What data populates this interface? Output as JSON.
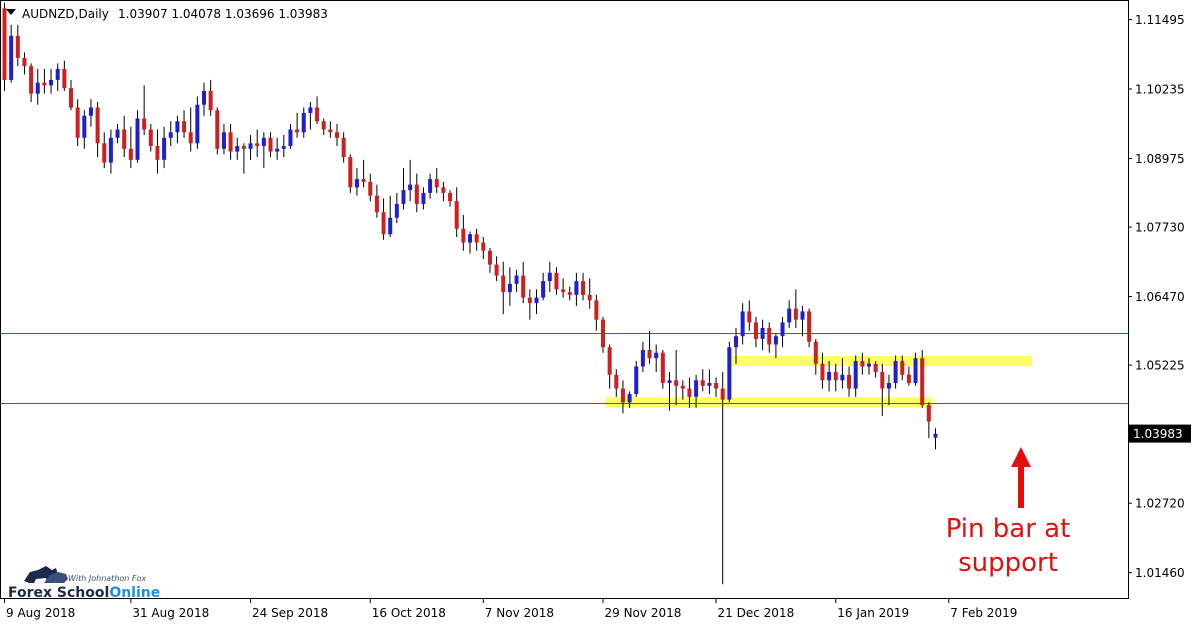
{
  "header": {
    "symbol_label": "AUDNZD,Daily",
    "ohlc_label": "1.03907 1.04078 1.03696 1.03983"
  },
  "annotation": {
    "line1": "Pin bar at",
    "line2": "support"
  },
  "logo": {
    "tagline": "With Johnathon Fox",
    "name_part1": "Forex School",
    "name_part2": "Online"
  },
  "colors": {
    "bull": "#1f1fd0",
    "bear": "#d01f1f",
    "wick": "#000000",
    "level_line": "#dd2222",
    "zone": "#ffff66",
    "annotation": "#e01010",
    "price_tag_bg": "#000000",
    "price_tag_text": "#ffffff"
  },
  "chart_data": {
    "type": "candlestick",
    "symbol": "AUDNZD",
    "timeframe": "Daily",
    "current_price": "1.03983",
    "ylim": [
      1.01,
      1.1185
    ],
    "y_ticks": [
      "1.11495",
      "1.10235",
      "1.08975",
      "1.07730",
      "1.06470",
      "1.05225",
      "1.03983",
      "1.02720",
      "1.01460"
    ],
    "x_ticks": [
      {
        "index": 0,
        "label": "9 Aug 2018"
      },
      {
        "index": 19,
        "label": "31 Aug 2018"
      },
      {
        "index": 37,
        "label": "24 Sep 2018"
      },
      {
        "index": 55,
        "label": "16 Oct 2018"
      },
      {
        "index": 72,
        "label": "7 Nov 2018"
      },
      {
        "index": 90,
        "label": "29 Nov 2018"
      },
      {
        "index": 107,
        "label": "21 Dec 2018"
      },
      {
        "index": 125,
        "label": "16 Jan 2019"
      },
      {
        "index": 142,
        "label": "7 Feb 2019"
      }
    ],
    "horizontal_levels": [
      1.058,
      1.0453
    ],
    "zones": [
      {
        "from_index": 91,
        "to_index": 139,
        "price": 1.0455
      },
      {
        "from_index": 110,
        "to_index": 154,
        "price": 1.053
      }
    ],
    "candles": [
      [
        1.117,
        1.118,
        1.102,
        1.104
      ],
      [
        1.104,
        1.114,
        1.1035,
        1.112
      ],
      [
        1.112,
        1.114,
        1.1065,
        1.108
      ],
      [
        1.108,
        1.109,
        1.105,
        1.1065
      ],
      [
        1.1065,
        1.107,
        1.1,
        1.1015
      ],
      [
        1.1015,
        1.106,
        1.0995,
        1.1035
      ],
      [
        1.1035,
        1.106,
        1.1015,
        1.103
      ],
      [
        1.103,
        1.106,
        1.1015,
        1.104
      ],
      [
        1.104,
        1.107,
        1.102,
        1.106
      ],
      [
        1.106,
        1.1075,
        1.102,
        1.1025
      ],
      [
        1.1025,
        1.104,
        1.0985,
        1.099
      ],
      [
        1.099,
        1.1005,
        1.092,
        1.0935
      ],
      [
        1.0935,
        1.0985,
        1.0915,
        1.0975
      ],
      [
        1.0975,
        1.1005,
        1.0955,
        1.099
      ],
      [
        1.099,
        1.1,
        1.09,
        1.0925
      ],
      [
        1.0925,
        1.0945,
        1.088,
        1.089
      ],
      [
        1.089,
        1.095,
        1.087,
        1.0935
      ],
      [
        1.0935,
        1.096,
        1.0925,
        1.095
      ],
      [
        1.095,
        1.0975,
        1.09,
        1.0915
      ],
      [
        1.0915,
        1.0955,
        1.088,
        1.0895
      ],
      [
        1.0895,
        1.0985,
        1.089,
        1.097
      ],
      [
        1.097,
        1.103,
        1.094,
        1.095
      ],
      [
        1.095,
        1.096,
        1.091,
        1.092
      ],
      [
        1.092,
        1.095,
        1.087,
        1.0895
      ],
      [
        1.0895,
        1.0955,
        1.088,
        1.0935
      ],
      [
        1.0935,
        1.0965,
        1.092,
        1.0945
      ],
      [
        1.0945,
        1.0975,
        1.0925,
        1.0965
      ],
      [
        1.0965,
        1.0985,
        1.0935,
        1.0945
      ],
      [
        1.0945,
        1.099,
        1.091,
        1.0925
      ],
      [
        1.0925,
        1.101,
        1.0915,
        1.0995
      ],
      [
        1.0995,
        1.1035,
        1.0975,
        1.102
      ],
      [
        1.102,
        1.104,
        1.0975,
        1.0985
      ],
      [
        1.0985,
        1.099,
        1.0905,
        1.0915
      ],
      [
        1.0915,
        1.096,
        1.0905,
        1.0945
      ],
      [
        1.0945,
        1.096,
        1.0895,
        1.091
      ],
      [
        1.091,
        1.0935,
        1.0895,
        1.092
      ],
      [
        1.092,
        1.0925,
        1.087,
        1.0915
      ],
      [
        1.0915,
        1.094,
        1.0895,
        1.0925
      ],
      [
        1.0925,
        1.095,
        1.09,
        1.092
      ],
      [
        1.092,
        1.0945,
        1.088,
        1.0935
      ],
      [
        1.0935,
        1.0945,
        1.09,
        1.091
      ],
      [
        1.091,
        1.0935,
        1.0895,
        1.0915
      ],
      [
        1.0915,
        1.094,
        1.09,
        1.092
      ],
      [
        1.092,
        1.096,
        1.0915,
        1.095
      ],
      [
        1.095,
        1.098,
        1.0935,
        1.0945
      ],
      [
        1.0945,
        1.099,
        1.0935,
        1.098
      ],
      [
        1.098,
        1.1,
        1.095,
        1.099
      ],
      [
        1.099,
        1.101,
        1.096,
        1.0965
      ],
      [
        1.0965,
        1.097,
        1.094,
        1.095
      ],
      [
        1.095,
        1.0965,
        1.0935,
        1.0945
      ],
      [
        1.0945,
        1.096,
        1.092,
        1.0935
      ],
      [
        1.0935,
        1.0945,
        1.089,
        1.09
      ],
      [
        1.09,
        1.0905,
        1.0835,
        1.0845
      ],
      [
        1.0845,
        1.088,
        1.083,
        1.086
      ],
      [
        1.086,
        1.0895,
        1.0845,
        1.0855
      ],
      [
        1.0855,
        1.087,
        1.082,
        1.083
      ],
      [
        1.083,
        1.085,
        1.079,
        1.08
      ],
      [
        1.08,
        1.0825,
        1.075,
        1.076
      ],
      [
        1.076,
        1.083,
        1.0755,
        1.079
      ],
      [
        1.079,
        1.0835,
        1.078,
        1.0815
      ],
      [
        1.0815,
        1.088,
        1.0805,
        1.084
      ],
      [
        1.084,
        1.0895,
        1.082,
        1.085
      ],
      [
        1.085,
        1.087,
        1.08,
        1.0815
      ],
      [
        1.0815,
        1.0845,
        1.0805,
        1.0835
      ],
      [
        1.0835,
        1.087,
        1.0825,
        1.086
      ],
      [
        1.086,
        1.088,
        1.0835,
        1.0845
      ],
      [
        1.0845,
        1.0855,
        1.082,
        1.0835
      ],
      [
        1.0835,
        1.084,
        1.081,
        1.082
      ],
      [
        1.082,
        1.0845,
        1.0755,
        1.077
      ],
      [
        1.077,
        1.0795,
        1.073,
        1.0745
      ],
      [
        1.0745,
        1.0765,
        1.0725,
        1.076
      ],
      [
        1.076,
        1.077,
        1.073,
        1.0745
      ],
      [
        1.0745,
        1.0755,
        1.0715,
        1.073
      ],
      [
        1.073,
        1.0735,
        1.069,
        1.0705
      ],
      [
        1.0705,
        1.072,
        1.0675,
        1.0685
      ],
      [
        1.0685,
        1.071,
        1.0615,
        1.0655
      ],
      [
        1.0655,
        1.07,
        1.063,
        1.067
      ],
      [
        1.067,
        1.0695,
        1.0655,
        1.0685
      ],
      [
        1.0685,
        1.071,
        1.0635,
        1.0645
      ],
      [
        1.0645,
        1.066,
        1.0605,
        1.0635
      ],
      [
        1.0635,
        1.066,
        1.0615,
        1.0645
      ],
      [
        1.0645,
        1.069,
        1.064,
        1.0675
      ],
      [
        1.0675,
        1.071,
        1.0655,
        1.069
      ],
      [
        1.069,
        1.07,
        1.065,
        1.066
      ],
      [
        1.066,
        1.068,
        1.0645,
        1.0655
      ],
      [
        1.0655,
        1.0665,
        1.064,
        1.065
      ],
      [
        1.065,
        1.069,
        1.063,
        1.0675
      ],
      [
        1.0675,
        1.069,
        1.064,
        1.065
      ],
      [
        1.065,
        1.068,
        1.0625,
        1.064
      ],
      [
        1.064,
        1.065,
        1.0585,
        1.0605
      ],
      [
        1.0605,
        1.061,
        1.0545,
        1.0555
      ],
      [
        1.0555,
        1.056,
        1.048,
        1.0505
      ],
      [
        1.0505,
        1.0515,
        1.0465,
        1.048
      ],
      [
        1.048,
        1.0495,
        1.0435,
        1.0455
      ],
      [
        1.0455,
        1.0475,
        1.0445,
        1.047
      ],
      [
        1.047,
        1.053,
        1.0465,
        1.052
      ],
      [
        1.052,
        1.0565,
        1.051,
        1.055
      ],
      [
        1.055,
        1.0585,
        1.0525,
        1.0535
      ],
      [
        1.0535,
        1.056,
        1.051,
        1.0545
      ],
      [
        1.0545,
        1.055,
        1.048,
        1.049
      ],
      [
        1.049,
        1.051,
        1.044,
        1.0495
      ],
      [
        1.0495,
        1.055,
        1.045,
        1.0485
      ],
      [
        1.0485,
        1.0495,
        1.046,
        1.048
      ],
      [
        1.048,
        1.05,
        1.0445,
        1.0465
      ],
      [
        1.0465,
        1.0505,
        1.0445,
        1.0495
      ],
      [
        1.0495,
        1.0515,
        1.0475,
        1.0485
      ],
      [
        1.0485,
        1.0515,
        1.047,
        1.049
      ],
      [
        1.049,
        1.05,
        1.0465,
        1.048
      ],
      [
        1.048,
        1.051,
        1.0125,
        1.046
      ],
      [
        1.046,
        1.0565,
        1.0455,
        1.0555
      ],
      [
        1.0555,
        1.059,
        1.0525,
        1.0575
      ],
      [
        1.0575,
        1.0635,
        1.056,
        1.062
      ],
      [
        1.062,
        1.064,
        1.0585,
        1.06
      ],
      [
        1.06,
        1.061,
        1.0555,
        1.057
      ],
      [
        1.057,
        1.0605,
        1.055,
        1.059
      ],
      [
        1.059,
        1.06,
        1.0545,
        1.056
      ],
      [
        1.056,
        1.058,
        1.0535,
        1.0575
      ],
      [
        1.0575,
        1.061,
        1.0555,
        1.06
      ],
      [
        1.06,
        1.064,
        1.059,
        1.0625
      ],
      [
        1.0625,
        1.066,
        1.059,
        1.0605
      ],
      [
        1.0605,
        1.063,
        1.0575,
        1.062
      ],
      [
        1.062,
        1.0625,
        1.0555,
        1.0565
      ],
      [
        1.0565,
        1.057,
        1.0505,
        1.0525
      ],
      [
        1.0525,
        1.0545,
        1.048,
        1.0495
      ],
      [
        1.0495,
        1.053,
        1.0475,
        1.051
      ],
      [
        1.051,
        1.0525,
        1.0475,
        1.0495
      ],
      [
        1.0495,
        1.0535,
        1.048,
        1.0505
      ],
      [
        1.0505,
        1.052,
        1.0465,
        1.048
      ],
      [
        1.048,
        1.054,
        1.0465,
        1.053
      ],
      [
        1.053,
        1.0545,
        1.0505,
        1.052
      ],
      [
        1.052,
        1.0535,
        1.0505,
        1.0525
      ],
      [
        1.0525,
        1.053,
        1.05,
        1.051
      ],
      [
        1.051,
        1.0525,
        1.043,
        1.048
      ],
      [
        1.048,
        1.0505,
        1.045,
        1.049
      ],
      [
        1.049,
        1.054,
        1.048,
        1.053
      ],
      [
        1.053,
        1.054,
        1.0495,
        1.0505
      ],
      [
        1.0505,
        1.052,
        1.0485,
        1.049
      ],
      [
        1.049,
        1.0545,
        1.0485,
        1.0535
      ],
      [
        1.0535,
        1.055,
        1.0445,
        1.045
      ],
      [
        1.045,
        1.0455,
        1.039,
        1.042
      ],
      [
        1.0391,
        1.0408,
        1.037,
        1.0398
      ]
    ]
  }
}
